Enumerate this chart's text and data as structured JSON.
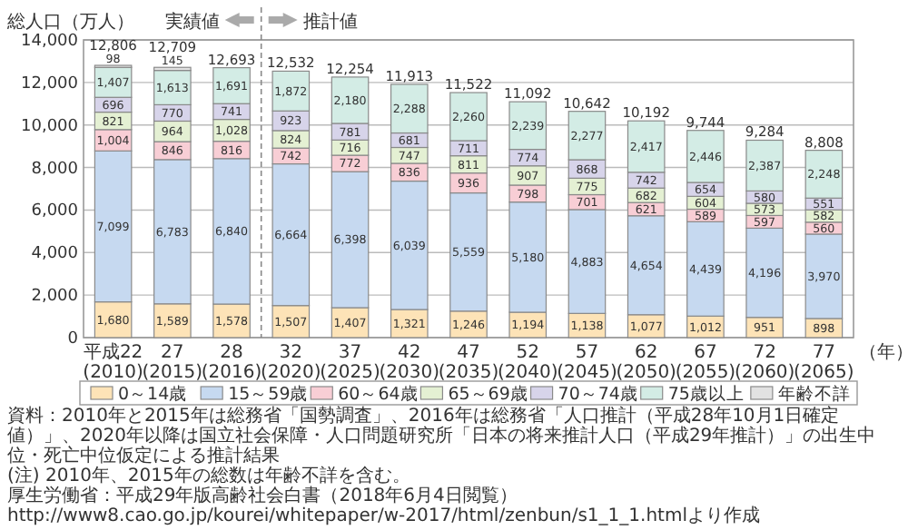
{
  "chart_data": {
    "type": "bar",
    "stacked": true,
    "ylabel": "総人口（万人）",
    "xlabel": "（年）",
    "categories": [
      "平成22 (2010)",
      "27 (2015)",
      "28 (2016)",
      "32 (2020)",
      "37 (2025)",
      "42 (2030)",
      "47 (2035)",
      "52 (2040)",
      "57 (2045)",
      "62 (2050)",
      "67 (2055)",
      "72 (2060)",
      "77 (2065)"
    ],
    "series": [
      {
        "name": "0～14歳",
        "color": "#fde3b7",
        "values": [
          1680,
          1589,
          1578,
          1507,
          1407,
          1321,
          1246,
          1194,
          1138,
          1077,
          1012,
          951,
          898
        ],
        "value_labels": [
          "1,680",
          "1,589",
          "1,578",
          "1,507",
          "1,407",
          "1,321",
          "1,246",
          "1,194",
          "1,138",
          "1,077",
          "1,012",
          "951",
          "898"
        ]
      },
      {
        "name": "15～59歳",
        "color": "#c6d9f0",
        "values": [
          7099,
          6783,
          6840,
          6664,
          6398,
          6039,
          5559,
          5180,
          4883,
          4654,
          4439,
          4196,
          3970
        ],
        "value_labels": [
          "7,099",
          "6,783",
          "6,840",
          "6,664",
          "6,398",
          "6,039",
          "5,559",
          "5,180",
          "4,883",
          "4,654",
          "4,439",
          "4,196",
          "3,970"
        ]
      },
      {
        "name": "60～64歳",
        "color": "#f8ced5",
        "values": [
          1004,
          846,
          816,
          742,
          772,
          836,
          936,
          798,
          701,
          621,
          589,
          597,
          560
        ],
        "value_labels": [
          "1,004",
          "846",
          "816",
          "742",
          "772",
          "836",
          "936",
          "798",
          "701",
          "621",
          "589",
          "597",
          "560"
        ]
      },
      {
        "name": "65～69歳",
        "color": "#e4f0d3",
        "values": [
          821,
          964,
          1028,
          824,
          716,
          747,
          811,
          907,
          775,
          682,
          604,
          573,
          582
        ],
        "value_labels": [
          "821",
          "964",
          "1,028",
          "824",
          "716",
          "747",
          "811",
          "907",
          "775",
          "682",
          "604",
          "573",
          "582"
        ]
      },
      {
        "name": "70～74歳",
        "color": "#d7d4ea",
        "values": [
          696,
          770,
          741,
          923,
          781,
          681,
          711,
          774,
          868,
          742,
          654,
          580,
          551
        ],
        "value_labels": [
          "696",
          "770",
          "741",
          "923",
          "781",
          "681",
          "711",
          "774",
          "868",
          "742",
          "654",
          "580",
          "551"
        ]
      },
      {
        "name": "75歳以上",
        "color": "#d3ece5",
        "values": [
          1407,
          1613,
          1691,
          1872,
          2180,
          2288,
          2260,
          2239,
          2277,
          2417,
          2446,
          2387,
          2248
        ],
        "value_labels": [
          "1,407",
          "1,613",
          "1,691",
          "1,872",
          "2,180",
          "2,288",
          "2,260",
          "2,239",
          "2,277",
          "2,417",
          "2,446",
          "2,387",
          "2,248"
        ]
      },
      {
        "name": "年齢不詳",
        "color": "#e2e2e2",
        "values": [
          98,
          145,
          null,
          null,
          null,
          null,
          null,
          null,
          null,
          null,
          null,
          null,
          null
        ],
        "value_labels": [
          "98",
          "145",
          null,
          null,
          null,
          null,
          null,
          null,
          null,
          null,
          null,
          null,
          null
        ]
      }
    ],
    "totals": [
      "12,806",
      "12,709",
      "12,693",
      "12,532",
      "12,254",
      "11,913",
      "11,522",
      "11,092",
      "10,642",
      "10,192",
      "9,744",
      "9,284",
      "8,808"
    ],
    "ylim": [
      0,
      14000
    ],
    "yticks": [
      {
        "value": 0,
        "label": "0"
      },
      {
        "value": 2000,
        "label": "2,000"
      },
      {
        "value": 4000,
        "label": "4,000"
      },
      {
        "value": 6000,
        "label": "6,000"
      },
      {
        "value": 8000,
        "label": "8,000"
      },
      {
        "value": 10000,
        "label": "10,000"
      },
      {
        "value": 12000,
        "label": "12,000"
      },
      {
        "value": 14000,
        "label": "14,000"
      }
    ],
    "grid": "y",
    "legend": "bottom",
    "annotations": [
      "実績値",
      "推計値",
      "資料：2010年と2015年は総務省「国勢調査」、2016年は総務省「人口推計（平成28年10月1日確定値）」、2020年以降は国立社会保障・人口問題研究所「日本の将来推計人口（平成29年推計）」の出生中位・死亡中位仮定による推計結果",
      "(注) 2010年、2015年の総数は年齢不詳を含む。",
      "厚生労働省：平成29年版高齢社会白書（2018年6月4日閲覧）http://www8.cao.go.jp/kourei/whitepaper/w-2017/html/zenbun/s1_1_1.htmlより作成"
    ]
  }
}
